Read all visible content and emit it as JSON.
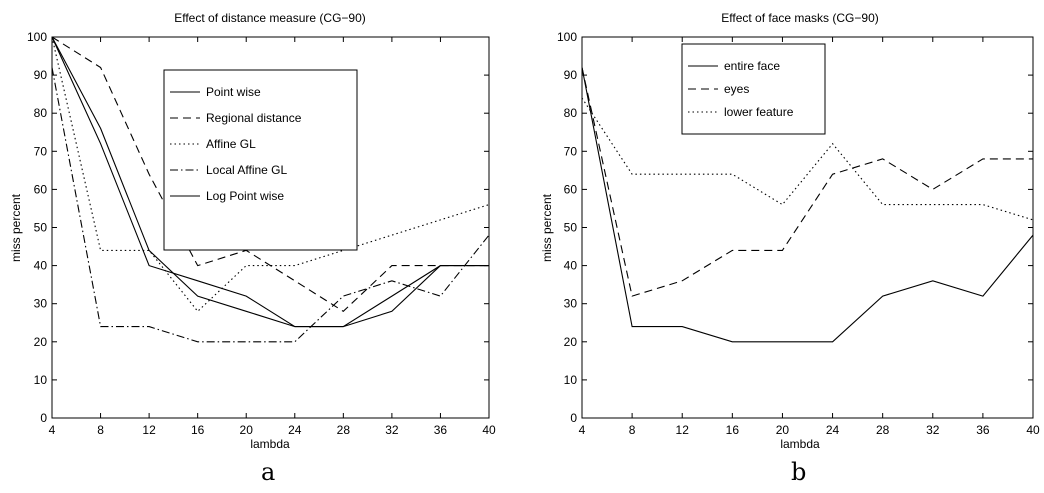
{
  "chart_data": [
    {
      "type": "line",
      "title": "Effect of distance measure (CG−90)",
      "xlabel": "lambda",
      "ylabel": "miss percent",
      "x": [
        4,
        8,
        12,
        16,
        20,
        24,
        28,
        32,
        36,
        40
      ],
      "xlim": [
        4,
        40
      ],
      "ylim": [
        0,
        100
      ],
      "xticks": [
        "4",
        "8",
        "12",
        "16",
        "20",
        "24",
        "28",
        "32",
        "36",
        "40"
      ],
      "yticks": [
        "0",
        "10",
        "20",
        "30",
        "40",
        "50",
        "60",
        "70",
        "80",
        "90",
        "100"
      ],
      "grid": false,
      "legend_position": "top-center",
      "sub_label": "a",
      "series": [
        {
          "name": "Point wise",
          "style": "solid",
          "values": [
            100,
            72,
            40,
            36,
            32,
            24,
            24,
            28,
            40,
            40
          ]
        },
        {
          "name": "Regional distance",
          "style": "dashed",
          "values": [
            100,
            92,
            64,
            40,
            44,
            36,
            28,
            40,
            40,
            40
          ]
        },
        {
          "name": "Affine GL",
          "style": "dotted",
          "values": [
            100,
            44,
            44,
            28,
            40,
            40,
            44,
            48,
            52,
            56
          ]
        },
        {
          "name": "Local Affine GL",
          "style": "dashdot",
          "values": [
            92,
            24,
            24,
            20,
            20,
            20,
            32,
            36,
            32,
            48
          ]
        },
        {
          "name": "Log Point wise",
          "style": "solid",
          "values": [
            100,
            76,
            44,
            32,
            28,
            24,
            24,
            32,
            40,
            40
          ]
        }
      ]
    },
    {
      "type": "line",
      "title": "Effect of face masks (CG−90)",
      "xlabel": "lambda",
      "ylabel": "miss percent",
      "x": [
        4,
        8,
        12,
        16,
        20,
        24,
        28,
        32,
        36,
        40
      ],
      "xlim": [
        4,
        40
      ],
      "ylim": [
        0,
        100
      ],
      "xticks": [
        "4",
        "8",
        "12",
        "16",
        "20",
        "24",
        "28",
        "32",
        "36",
        "40"
      ],
      "yticks": [
        "0",
        "10",
        "20",
        "30",
        "40",
        "50",
        "60",
        "70",
        "80",
        "90",
        "100"
      ],
      "grid": false,
      "legend_position": "top-left",
      "sub_label": "b",
      "series": [
        {
          "name": "entire face",
          "style": "solid",
          "values": [
            92,
            24,
            24,
            20,
            20,
            20,
            32,
            36,
            32,
            48
          ]
        },
        {
          "name": "eyes",
          "style": "dashed",
          "values": [
            92,
            32,
            36,
            44,
            44,
            64,
            68,
            60,
            68,
            68
          ]
        },
        {
          "name": "lower feature",
          "style": "dotted",
          "values": [
            84,
            64,
            64,
            64,
            56,
            72,
            56,
            56,
            56,
            52
          ]
        }
      ]
    }
  ]
}
